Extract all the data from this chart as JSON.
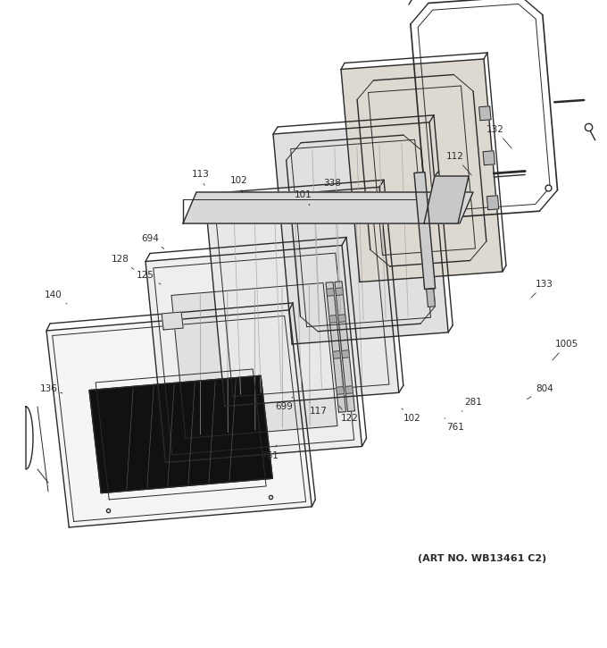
{
  "art_no": "(ART NO. WB13461 C2)",
  "background_color": "#ffffff",
  "line_color": "#2a2a2a",
  "label_color": "#2a2a2a",
  "label_fontsize": 7.5,
  "art_fontsize": 8.0,
  "fig_width": 6.8,
  "fig_height": 7.25
}
